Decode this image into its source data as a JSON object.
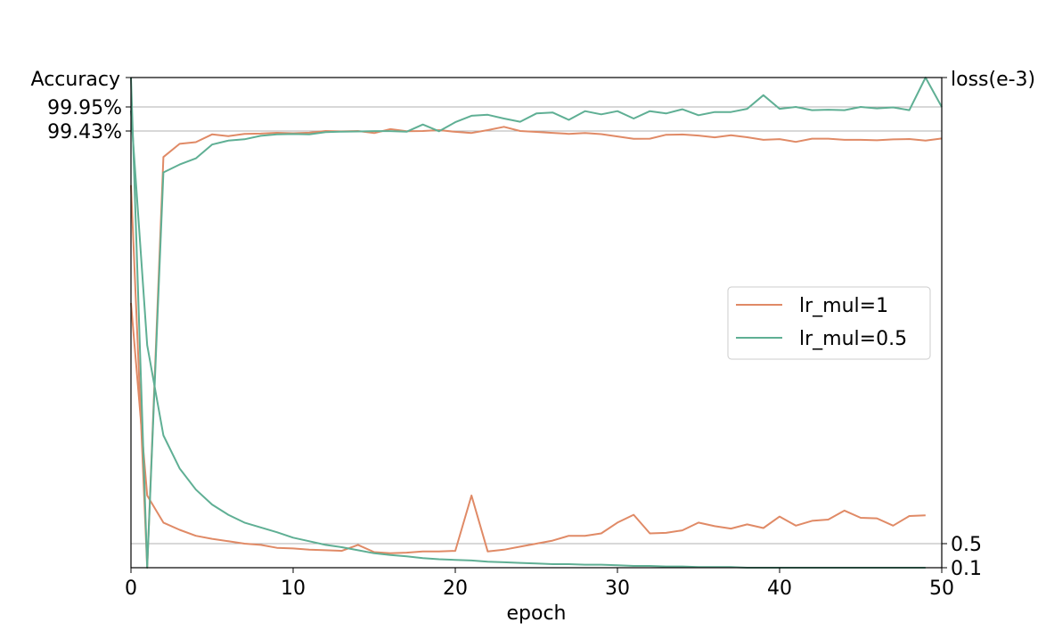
{
  "chart_data": {
    "type": "line",
    "xlabel": "epoch",
    "ylabel_left": "Accuracy",
    "ylabel_right": "loss(e-3)",
    "xlim": [
      0,
      50
    ],
    "x_ticks": [
      0,
      10,
      20,
      30,
      40,
      50
    ],
    "left_ticks": [
      {
        "label": "99.95%",
        "value": 0.9995
      },
      {
        "label": "99.43%",
        "value": 0.9943
      }
    ],
    "right_ticks": [
      {
        "label": "0.5",
        "value": 0.5
      },
      {
        "label": "0.1",
        "value": 0.1
      }
    ],
    "grid": "horizontal at labeled ticks",
    "legend": {
      "placement": "center-right"
    },
    "colors": {
      "lr_mul=1": "#e08a66",
      "lr_mul=0.5": "#5faf94"
    },
    "series": [
      {
        "name": "lr_mul=1",
        "accuracy": [
          0.871,
          0.0,
          0.935,
          0.965,
          0.969,
          0.9865,
          0.9828,
          0.9878,
          0.9885,
          0.9902,
          0.9892,
          0.9905,
          0.9943,
          0.9935,
          0.9943,
          0.9897,
          0.9947,
          0.9936,
          0.9943,
          0.9945,
          0.9924,
          0.9898,
          0.9945,
          0.9952,
          0.9943,
          0.9922,
          0.99,
          0.9879,
          0.9898,
          0.9872,
          0.982,
          0.9766,
          0.9768,
          0.9858,
          0.9863,
          0.984,
          0.9799,
          0.9847,
          0.98,
          0.9743,
          0.9759,
          0.9696,
          0.9769,
          0.9769,
          0.9743,
          0.9743,
          0.9732,
          0.9752,
          0.976,
          0.9723,
          0.9773
        ],
        "loss": [
          4.5,
          1.3,
          0.85,
          0.73,
          0.63,
          0.58,
          0.54,
          0.5,
          0.48,
          0.43,
          0.42,
          0.4,
          0.39,
          0.38,
          0.48,
          0.36,
          0.34,
          0.35,
          0.37,
          0.37,
          0.38,
          1.3,
          0.37,
          0.4,
          0.45,
          0.5,
          0.55,
          0.63,
          0.63,
          0.67,
          0.85,
          0.98,
          0.67,
          0.68,
          0.72,
          0.85,
          0.79,
          0.75,
          0.82,
          0.76,
          0.95,
          0.8,
          0.88,
          0.9,
          1.05,
          0.93,
          0.92,
          0.8,
          0.96,
          0.97
        ]
      },
      {
        "name": "lr_mul=0.5",
        "accuracy": [
          1.0,
          0.0,
          0.9,
          0.918,
          0.932,
          0.9635,
          0.9723,
          0.9755,
          0.9834,
          0.9865,
          0.9873,
          0.9868,
          0.9918,
          0.9929,
          0.9932,
          0.9941,
          0.994,
          0.9927,
          0.9957,
          0.9937,
          0.9962,
          0.9976,
          0.9978,
          0.997,
          0.9963,
          0.9981,
          0.9983,
          0.9967,
          0.9986,
          0.9979,
          0.9986,
          0.997,
          0.9986,
          0.9981,
          0.999,
          0.9977,
          0.9984,
          0.9984,
          0.9991,
          0.9997,
          0.9991,
          0.9995,
          0.9988,
          0.9989,
          0.9988,
          0.9995,
          0.9992,
          0.9994,
          0.9988,
          1.0,
          0.9995
        ]
      },
      {
        "name": "lr_mul=0.5",
        "loss": [
          7.7,
          3.8,
          2.3,
          1.75,
          1.4,
          1.15,
          0.98,
          0.85,
          0.77,
          0.69,
          0.6,
          0.54,
          0.48,
          0.44,
          0.39,
          0.34,
          0.31,
          0.29,
          0.26,
          0.24,
          0.23,
          0.22,
          0.2,
          0.19,
          0.18,
          0.17,
          0.16,
          0.16,
          0.15,
          0.15,
          0.14,
          0.13,
          0.13,
          0.12,
          0.12,
          0.11,
          0.11,
          0.11,
          0.1,
          0.1,
          0.1,
          0.09,
          0.09,
          0.09,
          0.09,
          0.08,
          0.08,
          0.08,
          0.08,
          0.08
        ]
      }
    ]
  }
}
